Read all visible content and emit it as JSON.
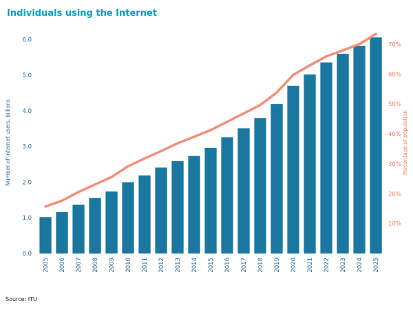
{
  "page": {
    "title": "Individuals using the Internet",
    "source": "Source: ITU"
  },
  "colors": {
    "title": "#00a3c6",
    "bar": "#1a78a0",
    "line": "#f48e77",
    "left_axis_text": "#2a6a9f",
    "right_axis_text": "#ed7e62",
    "source_text": "#222222"
  },
  "chart_data": {
    "type": "bar",
    "title": "Individuals using the Internet",
    "source": "Source: ITU",
    "grid": false,
    "legend": "none",
    "categories": [
      "2005",
      "2006",
      "2007",
      "2008",
      "2009",
      "2010",
      "2011",
      "2012",
      "2013",
      "2014",
      "2015",
      "2016",
      "2017",
      "2018",
      "2019",
      "2020",
      "2021",
      "2022",
      "2023",
      "2024",
      "2025"
    ],
    "series": [
      {
        "name": "Number of Internet users, billions",
        "type": "bar",
        "axis": "left",
        "color": "#1a78a0",
        "values": [
          1.02,
          1.16,
          1.37,
          1.56,
          1.74,
          2.0,
          2.19,
          2.41,
          2.59,
          2.74,
          2.96,
          3.26,
          3.51,
          3.8,
          4.19,
          4.7,
          5.02,
          5.36,
          5.6,
          5.82,
          6.06
        ]
      },
      {
        "name": "Percentage of population",
        "type": "line",
        "axis": "right",
        "color": "#f48e77",
        "values": [
          15.7,
          17.7,
          20.6,
          23.1,
          25.6,
          29.2,
          31.8,
          34.3,
          36.9,
          39.1,
          41.3,
          44.1,
          46.9,
          49.7,
          53.9,
          59.8,
          63.0,
          66.0,
          68.0,
          70.1,
          73.5
        ]
      }
    ],
    "left_axis": {
      "label": "Number of Internet users, billions",
      "tick_values": [
        0,
        1,
        2,
        3,
        4,
        5,
        6
      ],
      "tick_labels": [
        "0.0",
        "1.0",
        "2.0",
        "3.0",
        "4.0",
        "5.0",
        "6.0"
      ],
      "range": [
        0,
        6.24
      ],
      "color": "#2a6a9f"
    },
    "right_axis": {
      "label": "Percentage of population",
      "tick_values": [
        10,
        20,
        30,
        40,
        50,
        60,
        70
      ],
      "tick_labels": [
        "10%",
        "20%",
        "30%",
        "40%",
        "50%",
        "60%",
        "70%"
      ],
      "range": [
        0,
        74.5
      ],
      "color": "#ed7e62"
    }
  }
}
